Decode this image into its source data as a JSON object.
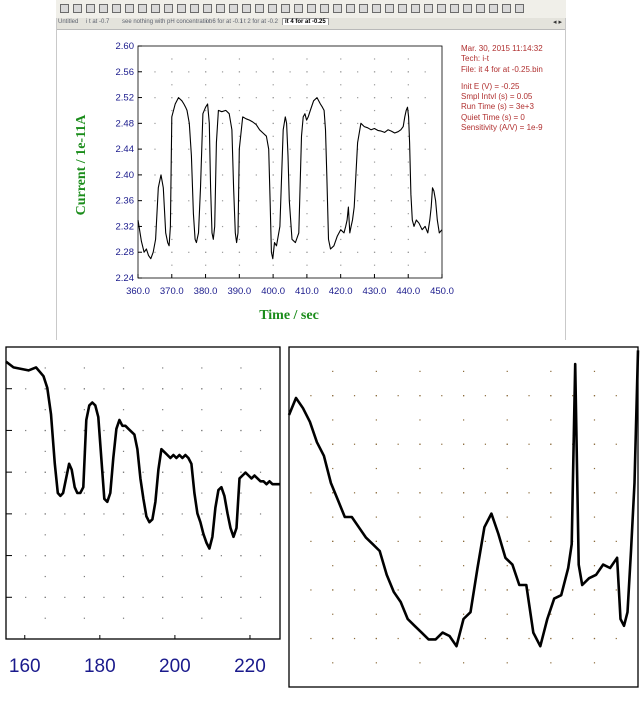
{
  "toolbar": {
    "tabs": [
      "Untitled",
      "i t at -0.7",
      "see nothing with pH concentration",
      "i t 6 for at -0.1",
      "i t 2 for at -0.2",
      "it 4 for at -0.25"
    ],
    "active_tab": "it 4 for at -0.25",
    "nav_arrows": "◂ ▸"
  },
  "info": {
    "date": "Mar. 30, 2015   11:14:32",
    "tech": "Tech: i-t",
    "file": "File: it 4 for at -0.25.bin",
    "init_e": "Init E (V) = -0.25",
    "sample_interval": "Smpl Intvl (s) = 0.05",
    "run_time": "Run Time (s) = 3e+3",
    "quiet_time": "Quiet Time (s) = 0",
    "sensitivity": "Sensitivity (A/V) = 1e-9"
  },
  "chart_data": [
    {
      "type": "line",
      "xlabel": "Time / sec",
      "ylabel": "Current / 1e-11A",
      "xlim": [
        360,
        450
      ],
      "ylim": [
        2.24,
        2.6
      ],
      "xticks": [
        "360.0",
        "370.0",
        "380.0",
        "390.0",
        "400.0",
        "410.0",
        "420.0",
        "430.0",
        "440.0",
        "450.0"
      ],
      "yticks": [
        "2.24",
        "2.28",
        "2.32",
        "2.36",
        "2.40",
        "2.44",
        "2.48",
        "2.52",
        "2.56",
        "2.60"
      ],
      "grid": "dotted",
      "x": [
        360,
        361,
        361.8,
        362.5,
        363.1,
        363.8,
        364.5,
        365.2,
        366,
        366.8,
        367.5,
        368.2,
        368.8,
        369.2,
        369.6,
        370,
        371,
        372,
        373,
        373.6,
        374.1,
        374.5,
        375.2,
        375.8,
        376.4,
        376.9,
        377.3,
        377.9,
        378.5,
        379.2,
        380,
        380.6,
        381.1,
        381.5,
        381.9,
        382.3,
        382.7,
        383.2,
        383.8,
        384.8,
        386,
        387,
        387.8,
        388.3,
        388.8,
        389.2,
        389.6,
        390,
        391,
        392,
        393,
        394,
        395,
        396,
        397,
        398,
        398.7,
        399.1,
        399.5,
        399.9,
        400.4,
        401,
        402,
        403,
        403.6,
        404,
        404.4,
        404.8,
        405.6,
        406.6,
        407.6,
        408.4,
        408.9,
        409.4,
        409.9,
        410.4,
        411,
        412,
        413,
        414,
        414.6,
        415.1,
        415.5,
        415.9,
        416.4,
        417,
        418,
        419,
        420,
        421,
        421.5,
        421.9,
        422.3,
        422.7,
        423.1,
        423.5,
        424,
        425,
        426,
        427,
        428,
        429,
        430,
        431,
        432,
        433,
        434,
        435,
        436,
        437,
        437.8,
        438.5,
        439,
        439.4,
        439.8,
        440.1,
        440.4,
        440.8,
        441.2,
        441.7,
        442.4,
        443.2,
        444.1,
        445,
        445.8,
        446.4,
        446.8,
        447.2,
        447.6,
        448.1,
        448.6,
        449.2,
        450
      ],
      "y": [
        2.33,
        2.297,
        2.28,
        2.285,
        2.275,
        2.27,
        2.28,
        2.3,
        2.38,
        2.4,
        2.38,
        2.31,
        2.295,
        2.29,
        2.32,
        2.49,
        2.51,
        2.52,
        2.515,
        2.51,
        2.505,
        2.5,
        2.48,
        2.43,
        2.34,
        2.3,
        2.295,
        2.31,
        2.38,
        2.495,
        2.505,
        2.51,
        2.48,
        2.38,
        2.31,
        2.3,
        2.32,
        2.45,
        2.5,
        2.498,
        2.5,
        2.495,
        2.47,
        2.38,
        2.31,
        2.295,
        2.31,
        2.44,
        2.49,
        2.487,
        2.485,
        2.482,
        2.478,
        2.47,
        2.465,
        2.46,
        2.44,
        2.36,
        2.28,
        2.27,
        2.295,
        2.29,
        2.32,
        2.47,
        2.49,
        2.48,
        2.43,
        2.36,
        2.3,
        2.295,
        2.31,
        2.46,
        2.49,
        2.495,
        2.485,
        2.49,
        2.5,
        2.515,
        2.52,
        2.51,
        2.505,
        2.5,
        2.47,
        2.4,
        2.3,
        2.285,
        2.29,
        2.305,
        2.315,
        2.31,
        2.32,
        2.33,
        2.35,
        2.31,
        2.32,
        2.33,
        2.35,
        2.45,
        2.48,
        2.475,
        2.473,
        2.47,
        2.472,
        2.469,
        2.468,
        2.466,
        2.47,
        2.468,
        2.465,
        2.467,
        2.47,
        2.475,
        2.49,
        2.5,
        2.505,
        2.49,
        2.45,
        2.37,
        2.33,
        2.32,
        2.33,
        2.325,
        2.315,
        2.32,
        2.31,
        2.33,
        2.35,
        2.38,
        2.375,
        2.36,
        2.33,
        2.31,
        2.315
      ]
    },
    {
      "type": "line",
      "xlabel": "",
      "ylabel": "",
      "xlim": [
        155,
        228
      ],
      "ylim": [
        0,
        1
      ],
      "xticks": [
        "160",
        "180",
        "200",
        "220"
      ],
      "grid": "dotted",
      "x": [
        155,
        157,
        159,
        161,
        163,
        164,
        165,
        166,
        167,
        168,
        168.8,
        169.5,
        170.2,
        171,
        171.8,
        172.5,
        173.3,
        174,
        174.8,
        175.6,
        176.4,
        177.2,
        178,
        178.8,
        179.6,
        180.4,
        181.2,
        182,
        182.8,
        183.6,
        184.4,
        185.2,
        186,
        186.8,
        187.6,
        188.4,
        189.2,
        190,
        190.8,
        191.6,
        192.4,
        193.2,
        194,
        194.8,
        195.6,
        196.4,
        197.2,
        198,
        198.8,
        199.6,
        200.4,
        201.2,
        202,
        202.8,
        203.6,
        204.4,
        205.2,
        206,
        206.8,
        207.6,
        208.4,
        209.2,
        210,
        210.8,
        211.6,
        212.4,
        213.2,
        214,
        214.8,
        215.6,
        216.4,
        217.2,
        218,
        218.8,
        219.6,
        220.4,
        221.2,
        222,
        222.8,
        223.6,
        224.4,
        225.2,
        226,
        228
      ],
      "y": [
        0.95,
        0.93,
        0.925,
        0.92,
        0.93,
        0.915,
        0.9,
        0.86,
        0.77,
        0.6,
        0.5,
        0.49,
        0.5,
        0.55,
        0.6,
        0.58,
        0.52,
        0.5,
        0.5,
        0.52,
        0.75,
        0.8,
        0.81,
        0.8,
        0.76,
        0.62,
        0.48,
        0.47,
        0.5,
        0.62,
        0.72,
        0.75,
        0.73,
        0.73,
        0.72,
        0.71,
        0.7,
        0.65,
        0.55,
        0.48,
        0.42,
        0.4,
        0.41,
        0.47,
        0.58,
        0.65,
        0.64,
        0.63,
        0.62,
        0.63,
        0.62,
        0.63,
        0.62,
        0.63,
        0.62,
        0.6,
        0.5,
        0.43,
        0.4,
        0.36,
        0.33,
        0.31,
        0.35,
        0.45,
        0.51,
        0.52,
        0.49,
        0.43,
        0.38,
        0.35,
        0.38,
        0.55,
        0.56,
        0.57,
        0.56,
        0.55,
        0.56,
        0.55,
        0.54,
        0.54,
        0.53,
        0.54,
        0.53,
        0.53
      ]
    },
    {
      "type": "line",
      "xlabel": "",
      "ylabel": "",
      "xlim": [
        0,
        1
      ],
      "ylim": [
        0,
        1
      ],
      "xticks": [],
      "grid": "dotted",
      "x": [
        0,
        0.02,
        0.04,
        0.06,
        0.08,
        0.1,
        0.12,
        0.14,
        0.16,
        0.18,
        0.2,
        0.22,
        0.24,
        0.26,
        0.28,
        0.3,
        0.32,
        0.34,
        0.36,
        0.38,
        0.4,
        0.42,
        0.44,
        0.46,
        0.48,
        0.5,
        0.52,
        0.54,
        0.56,
        0.58,
        0.6,
        0.62,
        0.64,
        0.66,
        0.68,
        0.7,
        0.72,
        0.74,
        0.76,
        0.78,
        0.8,
        0.81,
        0.82,
        0.83,
        0.84,
        0.86,
        0.88,
        0.9,
        0.92,
        0.94,
        0.95,
        0.96,
        0.97,
        0.98,
        0.99,
        1.0
      ],
      "y": [
        0.8,
        0.85,
        0.82,
        0.78,
        0.72,
        0.68,
        0.6,
        0.55,
        0.5,
        0.5,
        0.47,
        0.44,
        0.42,
        0.4,
        0.33,
        0.28,
        0.25,
        0.2,
        0.18,
        0.16,
        0.14,
        0.14,
        0.16,
        0.15,
        0.12,
        0.2,
        0.22,
        0.35,
        0.47,
        0.51,
        0.45,
        0.38,
        0.36,
        0.3,
        0.3,
        0.16,
        0.12,
        0.2,
        0.26,
        0.27,
        0.35,
        0.42,
        0.95,
        0.36,
        0.3,
        0.32,
        0.33,
        0.36,
        0.35,
        0.38,
        0.2,
        0.18,
        0.22,
        0.4,
        0.6,
        0.99
      ]
    }
  ]
}
